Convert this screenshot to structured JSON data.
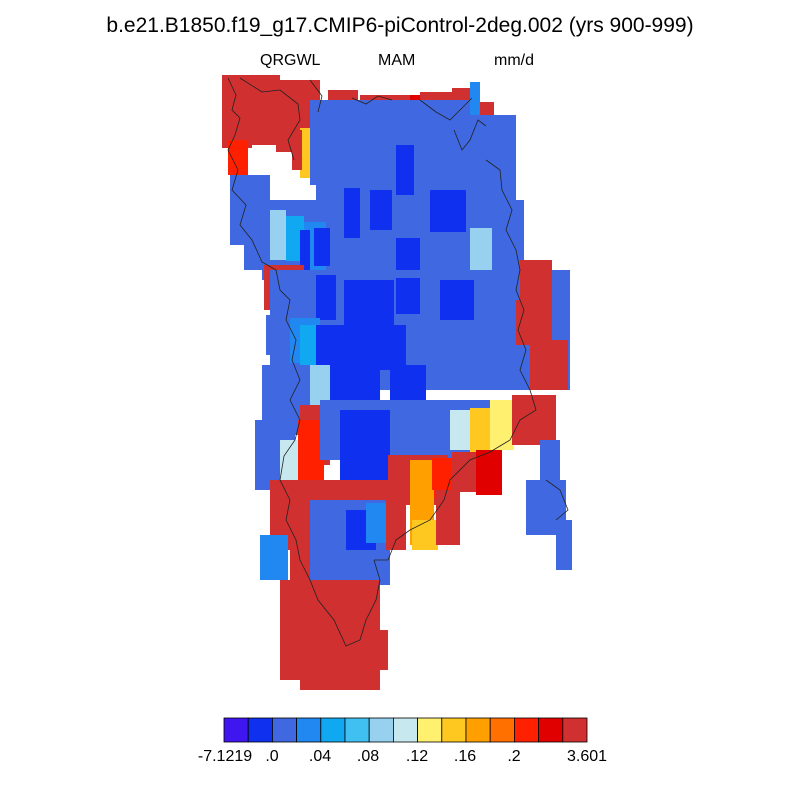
{
  "title": "b.e21.B1850.f19_g17.CMIP6-piControl-2deg.002 (yrs 900-999)",
  "variable": "QRGWL",
  "season": "MAM",
  "units": "mm/d",
  "colorbar": {
    "colors": [
      "#4016f0",
      "#1030f0",
      "#4068e0",
      "#2088f0",
      "#10a8f0",
      "#40c0f0",
      "#98d0f0",
      "#c8e8f0",
      "#fff070",
      "#ffc820",
      "#ffa000",
      "#ff7000",
      "#ff2000",
      "#e00000",
      "#d03030"
    ],
    "labels": [
      "-7.1219",
      ".0",
      ".04",
      ".08",
      ".12",
      ".16",
      ".2",
      "3.601"
    ]
  },
  "map_colors": {
    "red": "#d03030",
    "bright_red": "#ff2000",
    "dark_red": "#e00000",
    "blue": "#4068e0",
    "deep_blue": "#1030f0",
    "mid_blue": "#2088f0",
    "cyan": "#10a8f0",
    "light_blue": "#98d0f0",
    "pale_blue": "#c8e8f0",
    "yellow": "#fff070",
    "gold": "#ffc820",
    "orange": "#ffa000",
    "dark_orange": "#ff7000"
  }
}
